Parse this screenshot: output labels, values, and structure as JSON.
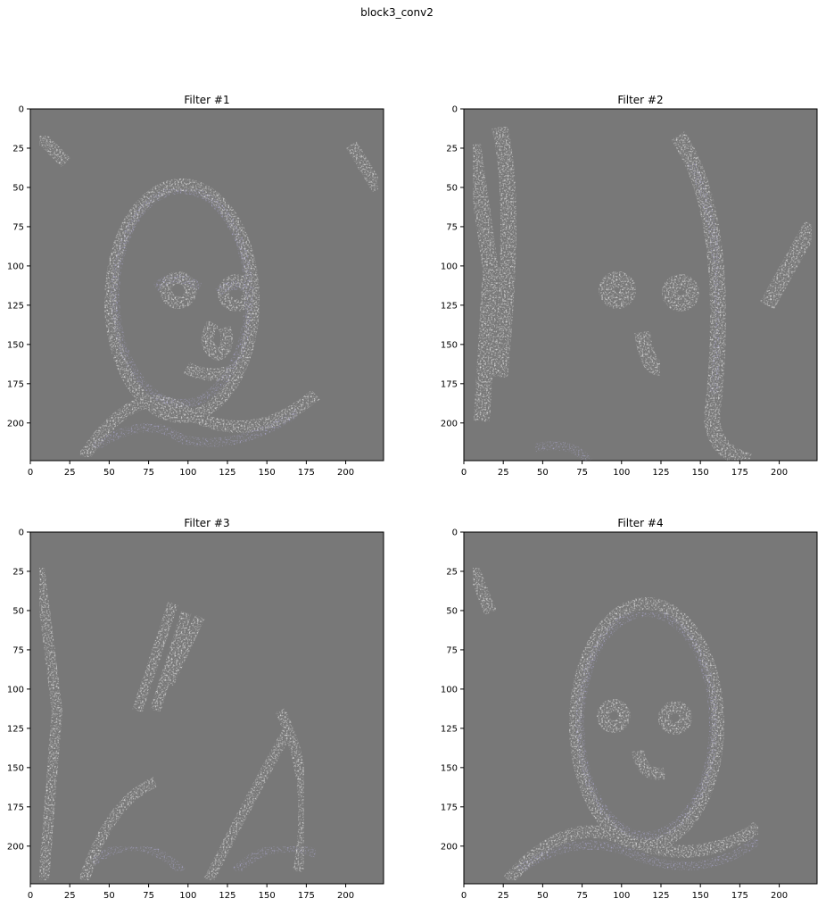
{
  "figure": {
    "title": "block3_conv2"
  },
  "chart_data": [
    {
      "type": "heatmap",
      "title": "Filter #1",
      "xlim": [
        0,
        224
      ],
      "ylim": [
        224,
        0
      ],
      "xticks": [
        0,
        25,
        50,
        75,
        100,
        125,
        150,
        175,
        200
      ],
      "yticks": [
        0,
        25,
        50,
        75,
        100,
        125,
        150,
        175,
        200
      ],
      "image": "feature map activation: gray background with white and purple edge highlights outlining a child's face (head outline, eyes, nose, mouth, shoulders)"
    },
    {
      "type": "heatmap",
      "title": "Filter #2",
      "xlim": [
        0,
        224
      ],
      "ylim": [
        224,
        0
      ],
      "xticks": [
        0,
        25,
        50,
        75,
        100,
        125,
        150,
        175,
        200
      ],
      "yticks": [
        0,
        25,
        50,
        75,
        100,
        125,
        150,
        175,
        200
      ],
      "image": "feature map activation: gray background with white edge highlights strongest on left background and right hair outline, eyes and nose visible"
    },
    {
      "type": "heatmap",
      "title": "Filter #3",
      "xlim": [
        0,
        224
      ],
      "ylim": [
        224,
        0
      ],
      "xticks": [
        0,
        25,
        50,
        75,
        100,
        125,
        150,
        175,
        200
      ],
      "yticks": [
        0,
        25,
        50,
        75,
        100,
        125,
        150,
        175,
        200
      ],
      "image": "feature map activation: mostly gray, diagonal white streaks on hair at upper left and across clothing at bottom"
    },
    {
      "type": "heatmap",
      "title": "Filter #4",
      "xlim": [
        0,
        224
      ],
      "ylim": [
        224,
        0
      ],
      "xticks": [
        0,
        25,
        50,
        75,
        100,
        125,
        150,
        175,
        200
      ],
      "yticks": [
        0,
        25,
        50,
        75,
        100,
        125,
        150,
        175,
        200
      ],
      "image": "feature map activation: gray background with white and purple edge highlights on face outline, eyes, and shoulders"
    }
  ],
  "colors": {
    "background_gray": "#787878",
    "edge_white": "#e6e6e6",
    "edge_purple": "#7b72c4"
  }
}
